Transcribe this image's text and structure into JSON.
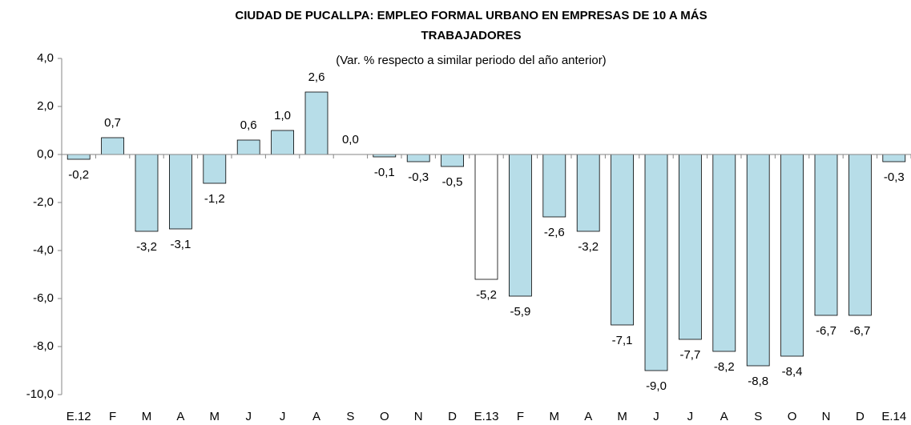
{
  "chart_data": {
    "type": "bar",
    "title": [
      "CIUDAD DE PUCALLPA:  EMPLEO FORMAL URBANO EN EMPRESAS DE 10 A MÁS",
      "TRABAJADORES"
    ],
    "subtitle": "(Var. % respecto a similar periodo del año anterior)",
    "categories": [
      "E.12",
      "F",
      "M",
      "A",
      "M",
      "J",
      "J",
      "A",
      "S",
      "O",
      "N",
      "D",
      "E.13",
      "F",
      "M",
      "A",
      "M",
      "J",
      "J",
      "A",
      "S",
      "O",
      "N",
      "D",
      "E.14"
    ],
    "values": [
      -0.2,
      0.7,
      -3.2,
      -3.1,
      -1.2,
      0.6,
      1.0,
      2.6,
      0.0,
      -0.1,
      -0.3,
      -0.5,
      -5.2,
      -5.9,
      -2.6,
      -3.2,
      -7.1,
      -9.0,
      -7.7,
      -8.2,
      -8.8,
      -8.4,
      -6.7,
      -6.7,
      -0.3
    ],
    "value_labels": [
      "-0,2",
      "0,7",
      "-3,2",
      "-3,1",
      "-1,2",
      "0,6",
      "1,0",
      "2,6",
      "0,0",
      "-0,1",
      "-0,3",
      "-0,5",
      "-5,2",
      "-5,9",
      "-2,6",
      "-3,2",
      "-7,1",
      "-9,0",
      "-7,7",
      "-8,2",
      "-8,8",
      "-8,4",
      "-6,7",
      "-6,7",
      "-0,3"
    ],
    "colors": [
      "#b7dde8",
      "#b7dde8",
      "#b7dde8",
      "#b7dde8",
      "#b7dde8",
      "#b7dde8",
      "#b7dde8",
      "#b7dde8",
      "#b7dde8",
      "#b7dde8",
      "#b7dde8",
      "#b7dde8",
      "#ffffff",
      "#b7dde8",
      "#b7dde8",
      "#b7dde8",
      "#b7dde8",
      "#b7dde8",
      "#b7dde8",
      "#b7dde8",
      "#b7dde8",
      "#b7dde8",
      "#b7dde8",
      "#b7dde8",
      "#b7dde8"
    ],
    "ylim": [
      -10,
      4
    ],
    "yticks": [
      {
        "value": -10,
        "label": "-10,0"
      },
      {
        "value": -8,
        "label": "-8,0"
      },
      {
        "value": -6,
        "label": "-6,0"
      },
      {
        "value": -4,
        "label": "-4,0"
      },
      {
        "value": -2,
        "label": "-2,0"
      },
      {
        "value": 0,
        "label": "0,0"
      },
      {
        "value": 2,
        "label": "2,0"
      },
      {
        "value": 4,
        "label": "4,0"
      }
    ],
    "grid": false
  }
}
